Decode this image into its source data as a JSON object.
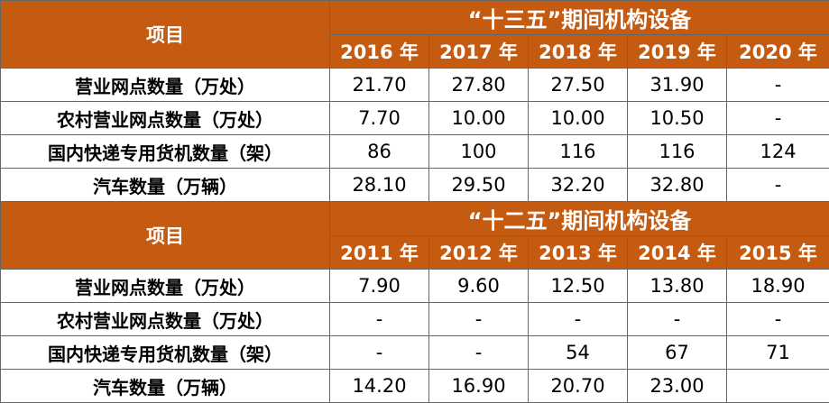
{
  "sections": [
    {
      "title": "“十三五”期间机构设备",
      "item_header": "项目",
      "years": [
        "2016 年",
        "2017 年",
        "2018 年",
        "2019 年",
        "2020 年"
      ],
      "rows": [
        {
          "label": "营业网点数量（万处）",
          "cells": [
            "21.70",
            "27.80",
            "27.50",
            "31.90",
            "-"
          ]
        },
        {
          "label": "农村营业网点数量（万处）",
          "cells": [
            "7.70",
            "10.00",
            "10.00",
            "10.50",
            "-"
          ]
        },
        {
          "label": "国内快递专用货机数量（架）",
          "cells": [
            "86",
            "100",
            "116",
            "116",
            "124"
          ]
        },
        {
          "label": "汽车数量（万辆）",
          "cells": [
            "28.10",
            "29.50",
            "32.20",
            "32.80",
            "-"
          ]
        }
      ]
    },
    {
      "title": "“十二五”期间机构设备",
      "item_header": "项目",
      "years": [
        "2011 年",
        "2012 年",
        "2013 年",
        "2014 年",
        "2015 年"
      ],
      "rows": [
        {
          "label": "营业网点数量（万处）",
          "cells": [
            "7.90",
            "9.60",
            "12.50",
            "13.80",
            "18.90"
          ]
        },
        {
          "label": "农村营业网点数量（万处）",
          "cells": [
            "-",
            "-",
            "-",
            "-",
            "-"
          ]
        },
        {
          "label": "国内快递专用货机数量（架）",
          "cells": [
            "-",
            "-",
            "54",
            "67",
            "71"
          ]
        },
        {
          "label": "汽车数量（万辆）",
          "cells": [
            "14.20",
            "16.90",
            "20.70",
            "23.00",
            ""
          ]
        }
      ]
    }
  ]
}
